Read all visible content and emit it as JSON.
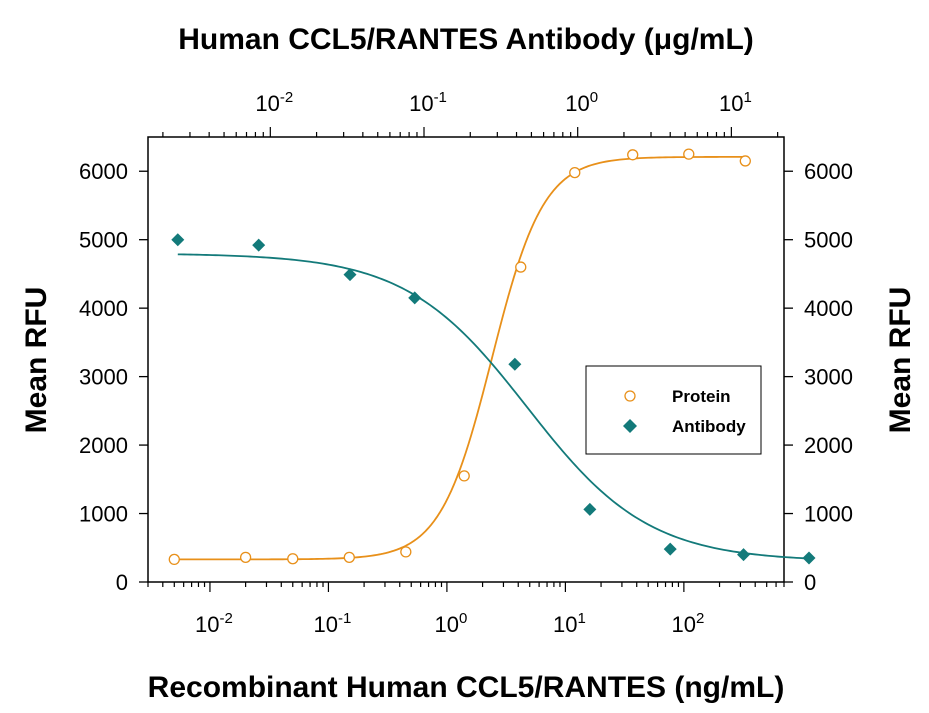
{
  "chart_data": {
    "type": "scatter",
    "title_top": "Human CCL5/RANTES Antibody (μg/mL)",
    "xlabel": "Recombinant Human CCL5/RANTES (ng/mL)",
    "ylabel_left": "Mean RFU",
    "ylabel_right": "Mean RFU",
    "x_scale": "log",
    "x_bottom_range": [
      0.003,
      700
    ],
    "x_top_range": [
      0.0016,
      22
    ],
    "ylim": [
      0,
      6500
    ],
    "y_ticks": [
      0,
      1000,
      2000,
      3000,
      4000,
      5000,
      6000
    ],
    "x_bottom_ticks": [
      {
        "value": 0.01,
        "base": "10",
        "exp": "-2"
      },
      {
        "value": 0.1,
        "base": "10",
        "exp": "-1"
      },
      {
        "value": 1,
        "base": "10",
        "exp": "0"
      },
      {
        "value": 10,
        "base": "10",
        "exp": "1"
      },
      {
        "value": 100,
        "base": "10",
        "exp": "2"
      }
    ],
    "x_top_ticks": [
      {
        "value": 0.01,
        "base": "10",
        "exp": "-2"
      },
      {
        "value": 0.1,
        "base": "10",
        "exp": "-1"
      },
      {
        "value": 1,
        "base": "10",
        "exp": "0"
      },
      {
        "value": 10,
        "base": "10",
        "exp": "1"
      }
    ],
    "legend": {
      "position": "right-middle"
    },
    "series": [
      {
        "name": "Protein",
        "axis": "bottom",
        "marker": "open-circle",
        "color": "#E8901A",
        "x": [
          0.005,
          0.02,
          0.05,
          0.15,
          0.45,
          1.4,
          4.2,
          12,
          37,
          110,
          330
        ],
        "y": [
          330,
          360,
          340,
          360,
          440,
          1550,
          4600,
          5980,
          6240,
          6250,
          6150
        ],
        "fit": {
          "bottom": 330,
          "top": 6210,
          "ec50": 2.4,
          "hill": 2.0
        }
      },
      {
        "name": "Antibody",
        "axis": "top",
        "marker": "filled-diamond",
        "color": "#137A7A",
        "x": [
          0.0025,
          0.0084,
          0.033,
          0.087,
          0.39,
          1.2,
          4.0,
          12,
          32
        ],
        "y": [
          5000,
          4920,
          4490,
          4150,
          3180,
          1060,
          480,
          400,
          350
        ],
        "fit": {
          "bottom": 300,
          "top": 4800,
          "ec50": 0.47,
          "hill": 1.1
        }
      }
    ]
  }
}
